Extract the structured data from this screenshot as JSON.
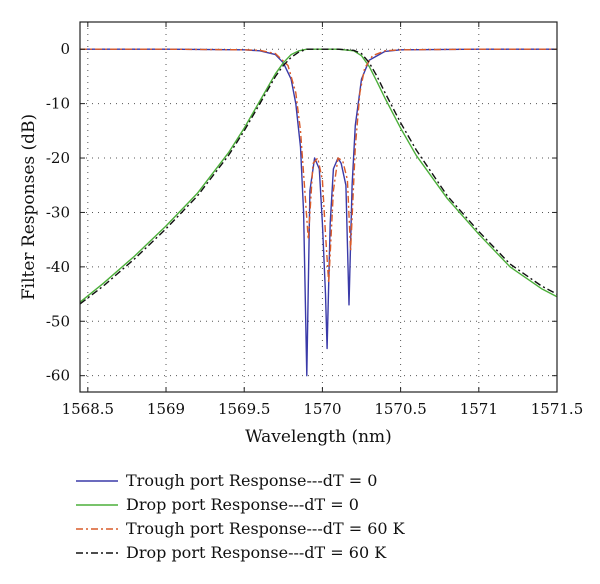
{
  "chart_data": {
    "type": "line",
    "xlabel": "Wavelength (nm)",
    "ylabel": "Filter Responses (dB)",
    "xlim": [
      1568.45,
      1571.5
    ],
    "ylim": [
      -63,
      5
    ],
    "xticks": [
      1568.5,
      1569,
      1569.5,
      1570,
      1570.5,
      1571,
      1571.5
    ],
    "xtick_labels": [
      "1568.5",
      "1569",
      "1569.5",
      "1570",
      "1570.5",
      "1571",
      "1571.5"
    ],
    "yticks": [
      0,
      -10,
      -20,
      -30,
      -40,
      -50,
      -60
    ],
    "ytick_labels": [
      "0",
      "-10",
      "-20",
      "-30",
      "-40",
      "-50",
      "-60"
    ],
    "grid": true,
    "legend_position": "below-left",
    "series": [
      {
        "name": "Trough port Response---dT = 0",
        "color": "#3a3aa8",
        "dash": "solid",
        "x": [
          1568.45,
          1569.0,
          1569.5,
          1569.6,
          1569.7,
          1569.75,
          1569.8,
          1569.83,
          1569.86,
          1569.88,
          1569.9,
          1569.92,
          1569.95,
          1569.98,
          1570.0,
          1570.02,
          1570.03,
          1570.05,
          1570.07,
          1570.1,
          1570.12,
          1570.15,
          1570.17,
          1570.19,
          1570.21,
          1570.25,
          1570.3,
          1570.4,
          1570.5,
          1571.0,
          1571.5
        ],
        "y": [
          0,
          0,
          -0.1,
          -0.3,
          -1,
          -2.5,
          -5.5,
          -10,
          -18,
          -30,
          -60,
          -26,
          -20,
          -22,
          -32,
          -45,
          -55,
          -32,
          -22,
          -20,
          -21,
          -25,
          -47,
          -25,
          -14,
          -5.5,
          -2,
          -0.4,
          -0.1,
          0,
          0
        ]
      },
      {
        "name": "Drop port Response---dT = 0",
        "color": "#4caf3a",
        "dash": "solid",
        "x": [
          1568.45,
          1568.6,
          1568.8,
          1569.0,
          1569.2,
          1569.4,
          1569.5,
          1569.6,
          1569.7,
          1569.75,
          1569.8,
          1569.85,
          1569.9,
          1570.0,
          1570.1,
          1570.2,
          1570.25,
          1570.3,
          1570.35,
          1570.4,
          1570.5,
          1570.6,
          1570.8,
          1571.0,
          1571.2,
          1571.4,
          1571.5
        ],
        "y": [
          -46.5,
          -43,
          -38,
          -32.5,
          -26.5,
          -19,
          -14.5,
          -9.5,
          -4.5,
          -2.5,
          -1,
          -0.3,
          0,
          0,
          0,
          -0.3,
          -1.2,
          -3.2,
          -6,
          -9,
          -14.5,
          -19.5,
          -27.5,
          -34,
          -40,
          -44,
          -45.5
        ]
      },
      {
        "name": "Trough port Response---dT = 60 K",
        "color": "#d95b2a",
        "dash": "7,3,2,3",
        "x": [
          1568.45,
          1569.0,
          1569.5,
          1569.6,
          1569.7,
          1569.78,
          1569.83,
          1569.86,
          1569.89,
          1569.91,
          1569.94,
          1569.97,
          1570.0,
          1570.02,
          1570.04,
          1570.07,
          1570.1,
          1570.13,
          1570.16,
          1570.18,
          1570.21,
          1570.24,
          1570.27,
          1570.32,
          1570.4,
          1570.5,
          1571.0,
          1571.5
        ],
        "y": [
          0,
          0,
          -0.1,
          -0.2,
          -0.8,
          -3,
          -8,
          -15,
          -27,
          -35,
          -21,
          -20,
          -24,
          -34,
          -43,
          -26,
          -20,
          -20.5,
          -24,
          -37,
          -18,
          -8,
          -3.5,
          -1.2,
          -0.3,
          -0.1,
          0,
          0
        ]
      },
      {
        "name": "Drop port Response---dT = 60 K",
        "color": "#111111",
        "dash": "7,3,2,3",
        "x": [
          1568.45,
          1568.6,
          1568.8,
          1569.0,
          1569.2,
          1569.4,
          1569.5,
          1569.6,
          1569.7,
          1569.75,
          1569.8,
          1569.85,
          1569.9,
          1570.0,
          1570.1,
          1570.2,
          1570.25,
          1570.3,
          1570.35,
          1570.4,
          1570.5,
          1570.6,
          1570.8,
          1571.0,
          1571.2,
          1571.4,
          1571.5
        ],
        "y": [
          -46.8,
          -43.5,
          -38.5,
          -33,
          -27,
          -19.5,
          -15,
          -10,
          -5,
          -3,
          -1.5,
          -0.5,
          0,
          0,
          0,
          -0.2,
          -0.8,
          -2.5,
          -5,
          -8,
          -13.5,
          -18.5,
          -27,
          -33.5,
          -39.5,
          -43.5,
          -45
        ]
      }
    ]
  }
}
